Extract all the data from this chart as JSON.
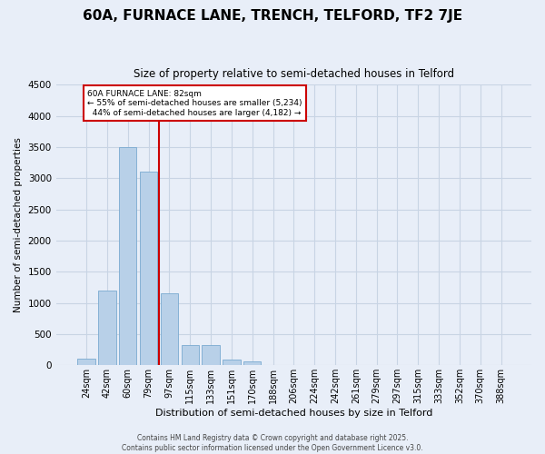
{
  "title": "60A, FURNACE LANE, TRENCH, TELFORD, TF2 7JE",
  "subtitle": "Size of property relative to semi-detached houses in Telford",
  "xlabel": "Distribution of semi-detached houses by size in Telford",
  "ylabel": "Number of semi-detached properties",
  "property_label": "60A FURNACE LANE: 82sqm",
  "pct_smaller": 55,
  "count_smaller": 5234,
  "pct_larger": 44,
  "count_larger": 4182,
  "bar_color": "#b8d0e8",
  "bar_edge_color": "#7aaad0",
  "vline_color": "#cc0000",
  "grid_color": "#c8d4e4",
  "background_color": "#e8eef8",
  "categories": [
    "24sqm",
    "42sqm",
    "60sqm",
    "79sqm",
    "97sqm",
    "115sqm",
    "133sqm",
    "151sqm",
    "170sqm",
    "188sqm",
    "206sqm",
    "224sqm",
    "242sqm",
    "261sqm",
    "279sqm",
    "297sqm",
    "315sqm",
    "333sqm",
    "352sqm",
    "370sqm",
    "388sqm"
  ],
  "values": [
    100,
    1200,
    3500,
    3100,
    1150,
    330,
    320,
    90,
    60,
    5,
    2,
    1,
    1,
    0,
    0,
    0,
    0,
    0,
    0,
    0,
    0
  ],
  "ylim": [
    0,
    4500
  ],
  "yticks": [
    0,
    500,
    1000,
    1500,
    2000,
    2500,
    3000,
    3500,
    4000,
    4500
  ],
  "vline_x": 3.5,
  "footer_line1": "Contains HM Land Registry data © Crown copyright and database right 2025.",
  "footer_line2": "Contains public sector information licensed under the Open Government Licence v3.0."
}
